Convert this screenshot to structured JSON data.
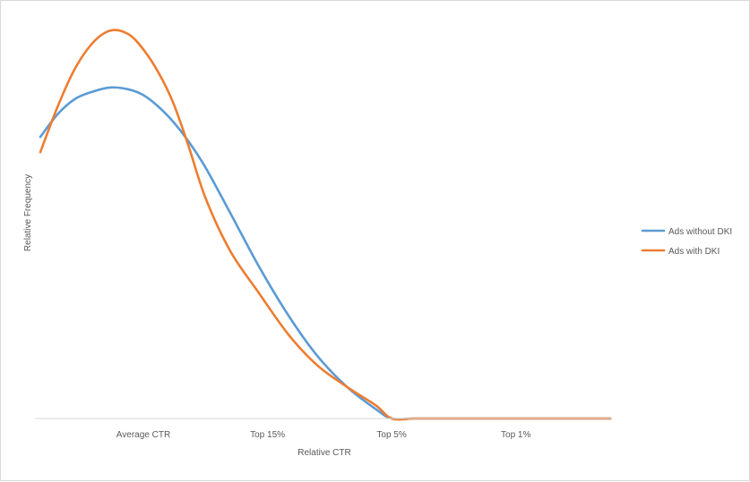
{
  "chart_data": {
    "type": "line",
    "title": "",
    "xlabel": "Relative CTR",
    "ylabel": "Relative Frequency",
    "x_ticks": [
      "Average CTR",
      "Top 15%",
      "Top 5%",
      "Top 1%"
    ],
    "x_tick_positions": [
      0.5,
      1.5,
      2.5,
      3.5
    ],
    "xlim": [
      -0.33,
      4.26
    ],
    "ylim": [
      0,
      1
    ],
    "grid": false,
    "legend_position": "right",
    "series": [
      {
        "name": "Ads without DKI",
        "color": "#5b9bd5",
        "x": [
          -0.33,
          -0.19,
          -0.05,
          0.1,
          0.24,
          0.38,
          0.5,
          0.62,
          0.74,
          0.86,
          1.0,
          1.2,
          1.43,
          1.67,
          1.9,
          2.14,
          2.37,
          2.5,
          2.68,
          2.85,
          3.02,
          3.3,
          3.55,
          3.85,
          4.0,
          4.26
        ],
        "y": [
          0.74,
          0.8,
          0.84,
          0.86,
          0.87,
          0.865,
          0.85,
          0.82,
          0.78,
          0.73,
          0.66,
          0.54,
          0.4,
          0.27,
          0.165,
          0.083,
          0.025,
          0.0,
          0.0,
          0.0,
          0.0,
          0.0,
          0.0,
          0.0,
          0.0,
          0.0
        ]
      },
      {
        "name": "Ads with DKI",
        "color": "#ed7d31",
        "x": [
          -0.33,
          -0.19,
          -0.05,
          0.1,
          0.24,
          0.38,
          0.5,
          0.62,
          0.74,
          0.86,
          1.0,
          1.2,
          1.43,
          1.67,
          1.9,
          2.14,
          2.37,
          2.5,
          2.68,
          2.85,
          3.02,
          3.3,
          3.55,
          3.85,
          4.0,
          4.26
        ],
        "y": [
          0.7,
          0.82,
          0.92,
          0.99,
          1.02,
          1.01,
          0.97,
          0.91,
          0.83,
          0.72,
          0.58,
          0.44,
          0.33,
          0.22,
          0.14,
          0.083,
          0.035,
          0.0,
          0.0,
          0.0,
          0.0,
          0.0,
          0.0,
          0.0,
          0.0,
          0.0
        ]
      }
    ]
  }
}
